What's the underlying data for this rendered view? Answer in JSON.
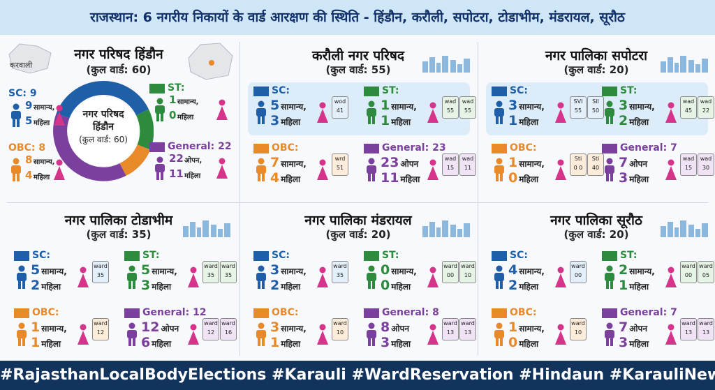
{
  "title": "राजस्थान: 6 नगरीय निकायों के वार्ड आरक्षण की स्थिति - हिंडौन, करौली, सपोटरा, टोडाभीम, मंडरायल, सूरौठ",
  "map_label": "करवाली",
  "donut_center": [
    "नगर परिषद",
    "हिंडौन",
    "(कुल वार्ड: 60)"
  ],
  "panels": [
    {
      "name": "नगर परिषद हिंडौन",
      "total": "(कुल वार्ड: 60)",
      "categories": [
        {
          "label": "SC: 9",
          "first": {
            "n": 9,
            "t": "सामान्य,"
          },
          "second": {
            "n": 5,
            "t": "महिला"
          },
          "wards": []
        },
        {
          "label": "ST:",
          "first": {
            "n": 1,
            "t": "सामान्य,"
          },
          "second": {
            "n": 0,
            "t": "महिला"
          },
          "wards": []
        },
        {
          "label": "OBC: 8",
          "first": {
            "n": 8,
            "t": "सामान्य,"
          },
          "second": {
            "n": 4,
            "t": "महिला"
          },
          "wards": []
        },
        {
          "label": "General: 22",
          "first": {
            "n": 22,
            "t": "ओपन,"
          },
          "second": {
            "n": 11,
            "t": "महिला"
          },
          "wards": []
        }
      ]
    },
    {
      "name": "करौली नगर परिषद",
      "total": "(कुल वार्ड: 55)",
      "categories": [
        {
          "label": "SC:",
          "first": {
            "n": 5,
            "t": "सामान्य,"
          },
          "second": {
            "n": 3,
            "t": "महिला"
          },
          "wards": [
            [
              "wod",
              "41"
            ]
          ]
        },
        {
          "label": "ST:",
          "first": {
            "n": 1,
            "t": "सामान्य,"
          },
          "second": {
            "n": 1,
            "t": "महिला"
          },
          "wards": [
            [
              "wad",
              "55"
            ],
            [
              "wad",
              "55"
            ]
          ]
        },
        {
          "label": "OBC:",
          "first": {
            "n": 7,
            "t": "सामान्य,"
          },
          "second": {
            "n": 4,
            "t": "महिला"
          },
          "wards": [
            [
              "wrd",
              "51"
            ]
          ]
        },
        {
          "label": "General: 23",
          "first": {
            "n": 23,
            "t": "ओपन"
          },
          "second": {
            "n": 11,
            "t": "महिला"
          },
          "wards": [
            [
              "wad",
              "15"
            ],
            [
              "wad",
              "11"
            ]
          ]
        }
      ]
    },
    {
      "name": "नगर पालिका सपोटरा",
      "total": "(कुल वार्ड: 20)",
      "categories": [
        {
          "label": "SC:",
          "first": {
            "n": 3,
            "t": "सामान्य,"
          },
          "second": {
            "n": 1,
            "t": "महिला"
          },
          "wards": [
            [
              "SVI",
              "55"
            ],
            [
              "SII",
              "50"
            ]
          ]
        },
        {
          "label": "ST:",
          "first": {
            "n": 3,
            "t": "सामान्य,"
          },
          "second": {
            "n": 2,
            "t": "महिला"
          },
          "wards": [
            [
              "wad",
              "45"
            ],
            [
              "wad",
              "22"
            ]
          ]
        },
        {
          "label": "OBC:",
          "first": {
            "n": 1,
            "t": "सामान्य,"
          },
          "second": {
            "n": 0,
            "t": "महिला"
          },
          "wards": [
            [
              "Sti",
              "0 0"
            ],
            [
              "Sti",
              "40"
            ]
          ]
        },
        {
          "label": "General: 7",
          "first": {
            "n": 7,
            "t": "ओपन"
          },
          "second": {
            "n": 3,
            "t": "महिला"
          },
          "wards": [
            [
              "wad",
              "15"
            ],
            [
              "wad",
              "30"
            ]
          ]
        }
      ]
    },
    {
      "name": "नगर पालिका टोडाभीम",
      "total": "(कुल वार्ड: 35)",
      "categories": [
        {
          "label": "SC:",
          "first": {
            "n": 5,
            "t": "सामान्य,"
          },
          "second": {
            "n": 2,
            "t": "महिला"
          },
          "wards": [
            [
              "ward",
              "35"
            ]
          ]
        },
        {
          "label": "ST:",
          "first": {
            "n": 5,
            "t": "सामान्य,"
          },
          "second": {
            "n": 3,
            "t": "महिला"
          },
          "wards": [
            [
              "ward",
              "35"
            ],
            [
              "ward",
              "35"
            ]
          ]
        },
        {
          "label": "OBC:",
          "first": {
            "n": 1,
            "t": "सामान्य,"
          },
          "second": {
            "n": 1,
            "t": "महिला"
          },
          "wards": [
            [
              "ward",
              "12"
            ]
          ]
        },
        {
          "label": "General: 12",
          "first": {
            "n": 12,
            "t": "ओपन"
          },
          "second": {
            "n": 6,
            "t": "महिला"
          },
          "wards": [
            [
              "ward",
              "12"
            ],
            [
              "ward",
              "16"
            ]
          ]
        }
      ]
    },
    {
      "name": "नगर पालिका मंडरायल",
      "total": "(कुल वार्ड: 20)",
      "categories": [
        {
          "label": "SC:",
          "first": {
            "n": 3,
            "t": "सामान्य,"
          },
          "second": {
            "n": 2,
            "t": "महिला"
          },
          "wards": [
            [
              "ward",
              "35"
            ]
          ]
        },
        {
          "label": "ST:",
          "first": {
            "n": 0,
            "t": "सामान्य,"
          },
          "second": {
            "n": 0,
            "t": "महिला"
          },
          "wards": [
            [
              "ward",
              "00"
            ],
            [
              "ward",
              "10"
            ]
          ]
        },
        {
          "label": "OBC:",
          "first": {
            "n": 3,
            "t": "सामान्य,"
          },
          "second": {
            "n": 1,
            "t": "महिला"
          },
          "wards": [
            [
              "ward",
              "10"
            ]
          ]
        },
        {
          "label": "General: 8",
          "first": {
            "n": 8,
            "t": "ओपन"
          },
          "second": {
            "n": 3,
            "t": "महिला"
          },
          "wards": [
            [
              "ward",
              "13"
            ],
            [
              "ward",
              "13"
            ]
          ]
        }
      ]
    },
    {
      "name": "नगर पालिका सूरौठ",
      "total": "(कुल वार्ड: 20)",
      "categories": [
        {
          "label": "SC:",
          "first": {
            "n": 4,
            "t": "सामान्य,"
          },
          "second": {
            "n": 2,
            "t": "महिला"
          },
          "wards": [
            [
              "ward",
              "00"
            ]
          ]
        },
        {
          "label": "ST:",
          "first": {
            "n": 2,
            "t": "सामान्य,"
          },
          "second": {
            "n": 1,
            "t": "महिला"
          },
          "wards": [
            [
              "ward",
              "00"
            ],
            [
              "ward",
              "05"
            ]
          ]
        },
        {
          "label": "OBC:",
          "first": {
            "n": 1,
            "t": "सामान्य,"
          },
          "second": {
            "n": 0,
            "t": "महिला"
          },
          "wards": [
            [
              "ward",
              "10"
            ]
          ]
        },
        {
          "label": "General: 7",
          "first": {
            "n": 7,
            "t": "ओपन"
          },
          "second": {
            "n": 3,
            "t": "महिला"
          },
          "wards": [
            [
              "ward",
              "13"
            ],
            [
              "ward",
              "13"
            ]
          ]
        }
      ]
    }
  ],
  "footer": "#RajasthanLocalBodyElections #Karauli #WardReservation #Hindaun #KarauliNews"
}
